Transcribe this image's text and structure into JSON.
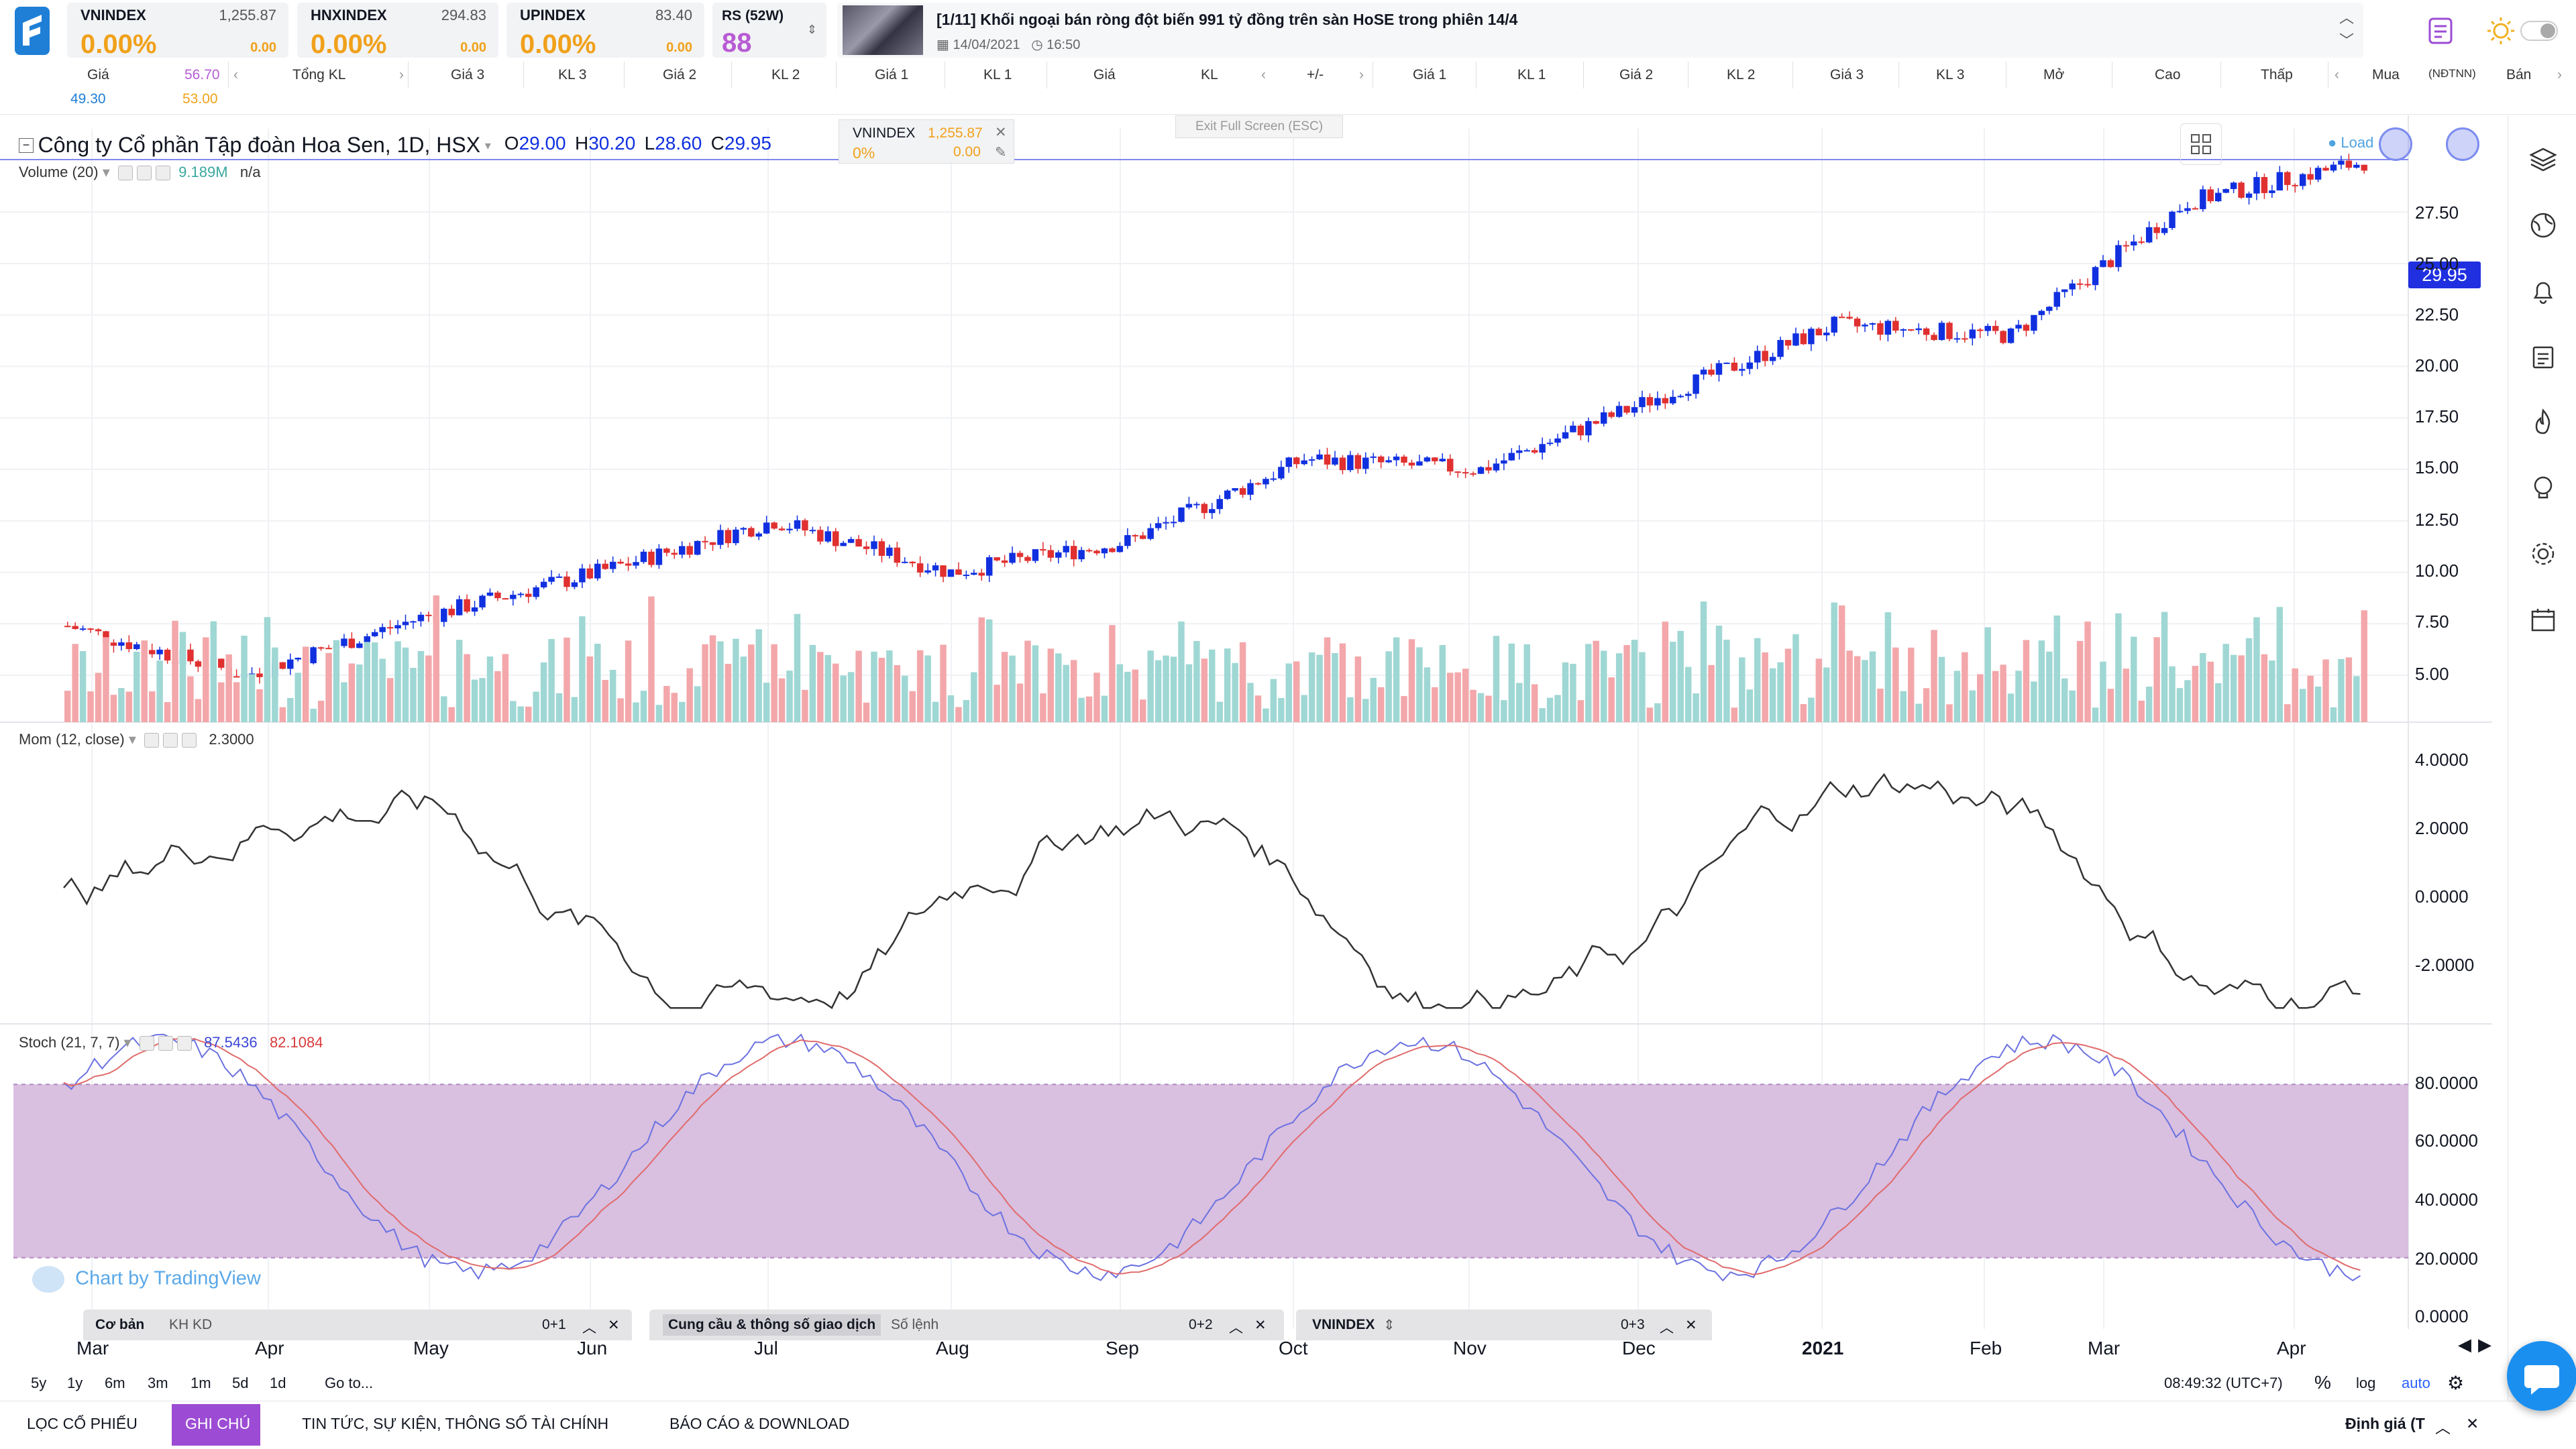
{
  "indices": [
    {
      "name": "VNINDEX",
      "value": "1,255.87",
      "pct": "0.00%",
      "chg": "0.00"
    },
    {
      "name": "HNXINDEX",
      "value": "294.83",
      "pct": "0.00%",
      "chg": "0.00"
    },
    {
      "name": "UPINDEX",
      "value": "83.40",
      "pct": "0.00%",
      "chg": "0.00"
    }
  ],
  "rs": {
    "label": "RS (52W)",
    "value": "88"
  },
  "news": {
    "title": "[1/11]   Khối ngoại bán ròng đột biến 991 tỷ đồng trên sàn HoSE trong phiên 14/4",
    "date": "14/04/2021",
    "time": "16:50"
  },
  "table_header": {
    "row1": [
      "Giá",
      "56.70",
      "Tổng KL",
      "Giá 3",
      "KL 3",
      "Giá 2",
      "KL 2",
      "Giá 1",
      "KL 1",
      "Giá",
      "KL",
      "+/-",
      "Giá 1",
      "KL 1",
      "Giá 2",
      "KL 2",
      "Giá 3",
      "KL 3",
      "Mở",
      "Cao",
      "Thấp",
      "Mua",
      "(NĐTNN)",
      "Bán"
    ],
    "row2": [
      "49.30",
      "53.00"
    ]
  },
  "chart": {
    "title": "Công ty Cổ phần Tập đoàn Hoa Sen, 1D, HSX",
    "ohlc": {
      "o_label": "O",
      "o": "29.00",
      "h_label": "H",
      "h": "30.20",
      "l_label": "L",
      "l": "28.60",
      "c_label": "C",
      "c": "29.95"
    },
    "compare": {
      "name": "VNINDEX",
      "value": "1,255.87",
      "pct": "0%",
      "chg": "0.00"
    },
    "exit_fullscreen": "Exit Full Screen (ESC)",
    "loading": "Load",
    "last_price": "29.95",
    "volume_legend": {
      "label": "Volume (20)",
      "v1": "9.189M",
      "v2": "n/a"
    },
    "mom_legend": {
      "label": "Mom (12, close)",
      "value": "2.3000"
    },
    "stoch_legend": {
      "label": "Stoch (21, 7, 7)",
      "k": "87.5436",
      "d": "82.1084"
    },
    "price_axis": [
      "27.50",
      "25.00",
      "22.50",
      "20.00",
      "17.50",
      "15.00",
      "12.50",
      "10.00",
      "7.50",
      "5.00"
    ],
    "mom_axis": [
      "4.0000",
      "2.0000",
      "0.0000",
      "-2.0000"
    ],
    "stoch_axis": [
      "80.0000",
      "60.0000",
      "40.0000",
      "20.0000",
      "0.0000"
    ],
    "x_axis": [
      "Mar",
      "Apr",
      "May",
      "Jun",
      "Jul",
      "Aug",
      "Sep",
      "Oct",
      "Nov",
      "Dec",
      "2021",
      "Feb",
      "Mar",
      "Apr"
    ],
    "watermark": "Chart by TradingView",
    "colors": {
      "up": "#1030e0",
      "down": "#e03030",
      "vol_up": "#9fd7d4",
      "vol_down": "#f3a7aa",
      "stoch_fill": "#d9bfe0",
      "mom": "#333333",
      "stoch_k": "#6b72e0",
      "stoch_d": "#e06b6b"
    }
  },
  "chart_data": {
    "type": "line",
    "x": [
      "Mar",
      "Apr",
      "May",
      "Jun",
      "Jul",
      "Aug",
      "Sep",
      "Oct",
      "Nov",
      "Dec",
      "2021",
      "Feb",
      "Mar",
      "Apr"
    ],
    "series": [
      {
        "values": [
          7.4,
          5.0,
          7.8,
          10.0,
          12.5,
          10.0,
          11.5,
          15.5,
          15.0,
          18.5,
          22.0,
          21.5,
          28.0,
          29.95
        ]
      }
    ],
    "ylim": [
      5,
      30
    ]
  },
  "panels": [
    {
      "tab1": "Cơ bản",
      "tab2": "KH KD",
      "count": "0+1"
    },
    {
      "tab1": "Cung cầu & thông số giao dịch",
      "tab2": "Số lệnh",
      "count": "0+2"
    },
    {
      "tab1": "VNINDEX",
      "tab2": "",
      "count": "0+3"
    }
  ],
  "timeframes": [
    "5y",
    "1y",
    "6m",
    "3m",
    "1m",
    "5d",
    "1d",
    "Go to..."
  ],
  "clock": "08:49:32 (UTC+7)",
  "axis_opts": [
    "%",
    "log",
    "auto"
  ],
  "bottom_nav": [
    "LỌC CỔ PHIẾU",
    "GHI CHÚ",
    "TIN TỨC, SỰ KIỆN, THÔNG SỐ TÀI CHÍNH",
    "BÁO CÁO & DOWNLOAD"
  ],
  "bottom_right": "Định giá (T"
}
